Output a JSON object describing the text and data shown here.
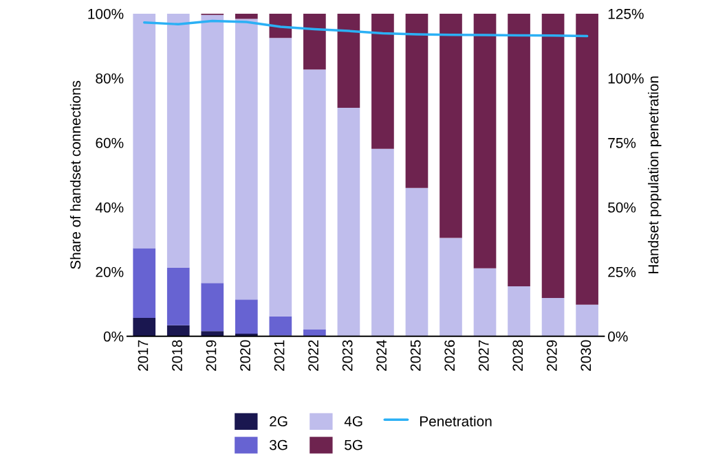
{
  "chart_data": {
    "type": "bar",
    "stacked": true,
    "ylabel": "Share of handset connections",
    "y2label": "Handset population penetration",
    "categories": [
      "2017",
      "2018",
      "2019",
      "2020",
      "2021",
      "2022",
      "2023",
      "2024",
      "2025",
      "2026",
      "2027",
      "2028",
      "2029",
      "2030"
    ],
    "series": [
      {
        "name": "2G",
        "color": "#1a1750",
        "values": [
          5.7,
          3.4,
          1.6,
          0.8,
          0.3,
          null,
          null,
          null,
          null,
          null,
          null,
          null,
          null,
          null
        ]
      },
      {
        "name": "3G",
        "color": "#6763d2",
        "values": [
          21.6,
          17.9,
          14.9,
          10.6,
          5.9,
          2.1,
          null,
          null,
          null,
          null,
          null,
          null,
          null,
          null
        ]
      },
      {
        "name": "4G",
        "color": "#bfbdec",
        "values": [
          72.7,
          78.7,
          83.1,
          87.0,
          86.3,
          80.6,
          70.8,
          58.1,
          46.0,
          30.5,
          21.1,
          15.5,
          11.9,
          9.8
        ]
      },
      {
        "name": "5G",
        "color": "#6e234f",
        "values": [
          null,
          null,
          0.4,
          1.6,
          7.5,
          17.3,
          29.2,
          41.9,
          54.0,
          69.5,
          78.9,
          84.5,
          88.1,
          90.2
        ]
      },
      {
        "name": "Penetration",
        "type": "line",
        "axis": "y2",
        "color": "#2bb0f5",
        "values": [
          121.6,
          120.9,
          122.2,
          121.8,
          119.9,
          119.0,
          118.3,
          117.4,
          117.0,
          116.8,
          116.7,
          116.6,
          116.5,
          116.3
        ]
      }
    ],
    "ylim": [
      0,
      100
    ],
    "yticks": [
      {
        "value": 0,
        "label": "0%"
      },
      {
        "value": 20,
        "label": "20%"
      },
      {
        "value": 40,
        "label": "40%"
      },
      {
        "value": 60,
        "label": "60%"
      },
      {
        "value": 80,
        "label": "80%"
      },
      {
        "value": 100,
        "label": "100%"
      }
    ],
    "y2lim": [
      0,
      125
    ],
    "y2ticks": [
      {
        "value": 0,
        "label": "0%"
      },
      {
        "value": 25,
        "label": "25%"
      },
      {
        "value": 50,
        "label": "50%"
      },
      {
        "value": 75,
        "label": "75%"
      },
      {
        "value": 100,
        "label": "100%"
      },
      {
        "value": 125,
        "label": "125%"
      }
    ],
    "grid": false,
    "legend": "bottom"
  }
}
